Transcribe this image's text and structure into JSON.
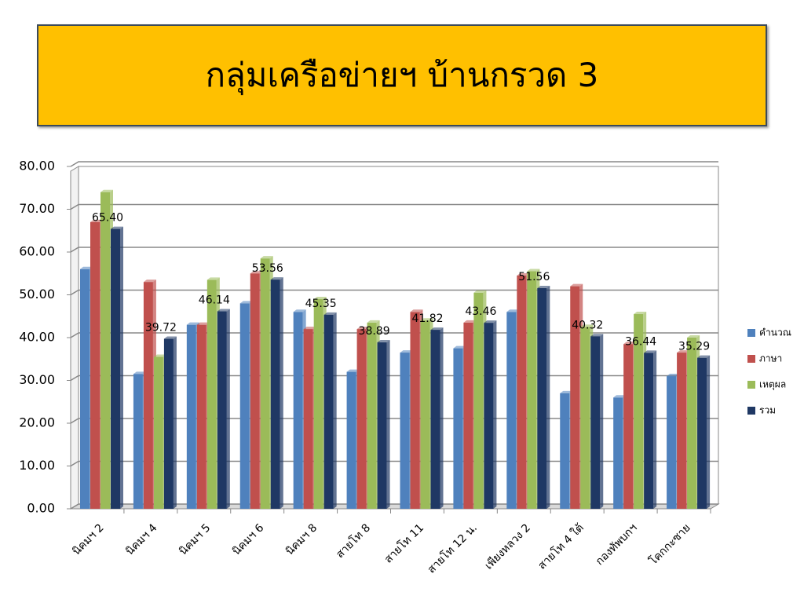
{
  "chart_data": {
    "type": "bar",
    "title": "กลุ่มเครือข่ายฯ บ้านกรวด 3",
    "categories": [
      "นิคมฯ 2",
      "นิคมฯ 4",
      "นิคมฯ 5",
      "นิคมฯ 6",
      "นิคมฯ 8",
      "สายโท 8",
      "สายโท 11",
      "สายโท 12 น.",
      "เพียงหลวง 2",
      "สายโท 4 ใต้",
      "กองทัพบกฯ",
      "โคกกะซาย"
    ],
    "series": [
      {
        "name": "คำนวณ",
        "color": "#4F81BD",
        "values": [
          56,
          31.5,
          43,
          48,
          46,
          32,
          36.5,
          37.5,
          46,
          27,
          26,
          31
        ]
      },
      {
        "name": "ภาษา",
        "color": "#C0504D",
        "values": [
          67,
          53,
          43,
          55,
          42,
          42,
          46,
          43.5,
          54.5,
          52,
          38.5,
          36.5
        ]
      },
      {
        "name": "เหตุผล",
        "color": "#9BBB59",
        "values": [
          74,
          35.5,
          53.5,
          58.5,
          49,
          43.5,
          44,
          50.5,
          55.5,
          42.5,
          45.5,
          40
        ]
      },
      {
        "name": "รวม",
        "color": "#1F3864",
        "values": [
          65.4,
          39.72,
          46.14,
          53.56,
          45.35,
          38.89,
          41.82,
          43.46,
          51.56,
          40.32,
          36.44,
          35.29
        ],
        "value_labels": [
          "65.40",
          "39.72",
          "46.14",
          "53.56",
          "45.35",
          "38.89",
          "41.82",
          "43.46",
          "51.56",
          "40.32",
          "36.44",
          "35.29"
        ]
      }
    ],
    "ylim": [
      0,
      80
    ],
    "yticks": [
      {
        "value": 0,
        "label": "0.00"
      },
      {
        "value": 10,
        "label": "10.00"
      },
      {
        "value": 20,
        "label": "20.00"
      },
      {
        "value": 30,
        "label": "30.00"
      },
      {
        "value": 40,
        "label": "40.00"
      },
      {
        "value": 50,
        "label": "50.00"
      },
      {
        "value": 60,
        "label": "60.00"
      },
      {
        "value": 70,
        "label": "70.00"
      },
      {
        "value": 80,
        "label": "80.00"
      }
    ],
    "grid": true,
    "legend": "right"
  }
}
